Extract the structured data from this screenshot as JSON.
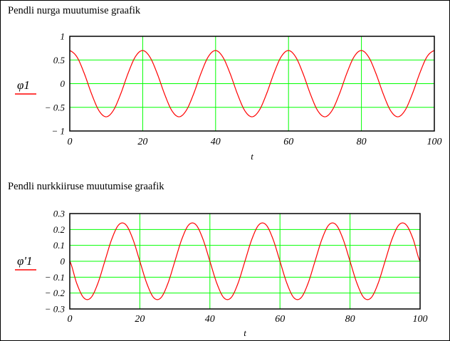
{
  "chart_data": [
    {
      "type": "line",
      "title": "Pendli nurga muutumise graafik",
      "xlabel": "t",
      "ylabel": "φ1",
      "legend_position": "left",
      "grid": true,
      "xlim": [
        0,
        100
      ],
      "ylim": [
        -1,
        1
      ],
      "xticks": [
        0,
        20,
        40,
        60,
        80,
        100
      ],
      "xtick_labels": [
        "0",
        "20",
        "40",
        "60",
        "80",
        "100"
      ],
      "yticks": [
        1,
        0.5,
        0,
        -0.5,
        -1
      ],
      "ytick_labels": [
        "1",
        "0.5",
        "0",
        "− 0.5",
        "− 1"
      ],
      "series": [
        {
          "name": "φ1",
          "color": "#ff0000",
          "x": [
            0,
            2,
            4,
            6,
            8,
            10,
            12,
            14,
            16,
            18,
            20,
            22,
            24,
            26,
            28,
            30,
            32,
            34,
            36,
            38,
            40,
            42,
            44,
            46,
            48,
            50,
            52,
            54,
            56,
            58,
            60,
            62,
            64,
            66,
            68,
            70,
            72,
            74,
            76,
            78,
            80,
            82,
            84,
            86,
            88,
            90,
            92,
            94,
            96,
            98,
            100
          ],
          "y": [
            0.7,
            0.56,
            0.21,
            -0.22,
            -0.57,
            -0.7,
            -0.56,
            -0.21,
            0.22,
            0.57,
            0.7,
            0.56,
            0.21,
            -0.22,
            -0.57,
            -0.7,
            -0.56,
            -0.21,
            0.22,
            0.57,
            0.7,
            0.56,
            0.21,
            -0.22,
            -0.57,
            -0.7,
            -0.56,
            -0.21,
            0.22,
            0.57,
            0.7,
            0.56,
            0.21,
            -0.22,
            -0.57,
            -0.7,
            -0.56,
            -0.21,
            0.22,
            0.57,
            0.7,
            0.56,
            0.21,
            -0.22,
            -0.57,
            -0.7,
            -0.56,
            -0.21,
            0.22,
            0.57,
            0.7
          ]
        }
      ],
      "colors": {
        "frame": "#000000",
        "grid": "#00ff00",
        "series": "#ff0000"
      }
    },
    {
      "type": "line",
      "title": "Pendli nurkkiiruse muutumise graafik",
      "xlabel": "t",
      "ylabel": "φ'1",
      "legend_position": "left",
      "grid": true,
      "xlim": [
        0,
        100
      ],
      "ylim": [
        -0.3,
        0.3
      ],
      "xticks": [
        0,
        20,
        40,
        60,
        80,
        100
      ],
      "xtick_labels": [
        "0",
        "20",
        "40",
        "60",
        "80",
        "100"
      ],
      "yticks": [
        0.3,
        0.2,
        0.1,
        0,
        -0.1,
        -0.2,
        -0.3
      ],
      "ytick_labels": [
        "0.3",
        "0.2",
        "0.1",
        "0",
        "− 0.1",
        "− 0.2",
        "− 0.3"
      ],
      "series": [
        {
          "name": "φ'1",
          "color": "#ff0000",
          "x": [
            0,
            2,
            4,
            6,
            8,
            10,
            12,
            14,
            16,
            18,
            20,
            22,
            24,
            26,
            28,
            30,
            32,
            34,
            36,
            38,
            40,
            42,
            44,
            46,
            48,
            50,
            52,
            54,
            56,
            58,
            60,
            62,
            64,
            66,
            68,
            70,
            72,
            74,
            76,
            78,
            80,
            82,
            84,
            86,
            88,
            90,
            92,
            94,
            96,
            98,
            100
          ],
          "y": [
            0,
            -0.14,
            -0.23,
            -0.23,
            -0.14,
            0.0,
            0.14,
            0.23,
            0.23,
            0.14,
            0.0,
            -0.14,
            -0.23,
            -0.23,
            -0.14,
            0.0,
            0.14,
            0.23,
            0.23,
            0.14,
            0.0,
            -0.14,
            -0.23,
            -0.23,
            -0.14,
            0.0,
            0.14,
            0.23,
            0.23,
            0.14,
            0.0,
            -0.14,
            -0.23,
            -0.23,
            -0.14,
            0.0,
            0.14,
            0.23,
            0.23,
            0.14,
            0.0,
            -0.14,
            -0.23,
            -0.23,
            -0.14,
            0.0,
            0.14,
            0.23,
            0.23,
            0.14,
            0.0
          ]
        }
      ],
      "colors": {
        "frame": "#000000",
        "grid": "#00ff00",
        "series": "#ff0000"
      }
    }
  ]
}
